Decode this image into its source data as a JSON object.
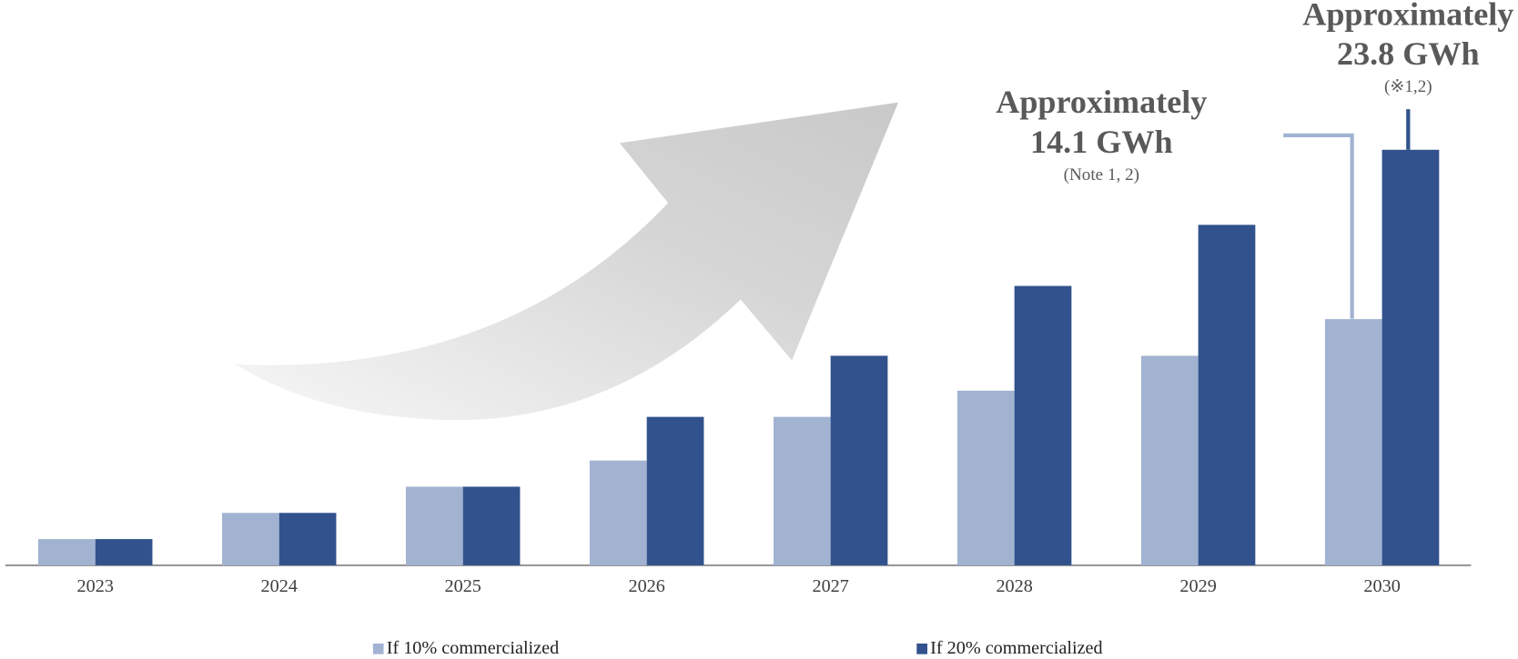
{
  "chart_data": {
    "type": "bar",
    "categories": [
      "2023",
      "2024",
      "2025",
      "2026",
      "2027",
      "2028",
      "2029",
      "2030"
    ],
    "series": [
      {
        "name": "If 10% commercialized",
        "color": "#a2b3d2",
        "values": [
          1.5,
          3.0,
          4.5,
          6.0,
          8.5,
          10.0,
          12.0,
          14.1
        ]
      },
      {
        "name": "If 20% commercialized",
        "color": "#31528c",
        "values": [
          1.5,
          3.0,
          4.5,
          8.5,
          12.0,
          16.0,
          19.5,
          23.8
        ]
      }
    ],
    "annotations": [
      {
        "lines": [
          "Approximately",
          "14.1 GWh",
          "(Note 1, 2)"
        ]
      },
      {
        "lines": [
          "Approximately",
          "23.8 GWh",
          "(※1,2)"
        ]
      }
    ]
  }
}
